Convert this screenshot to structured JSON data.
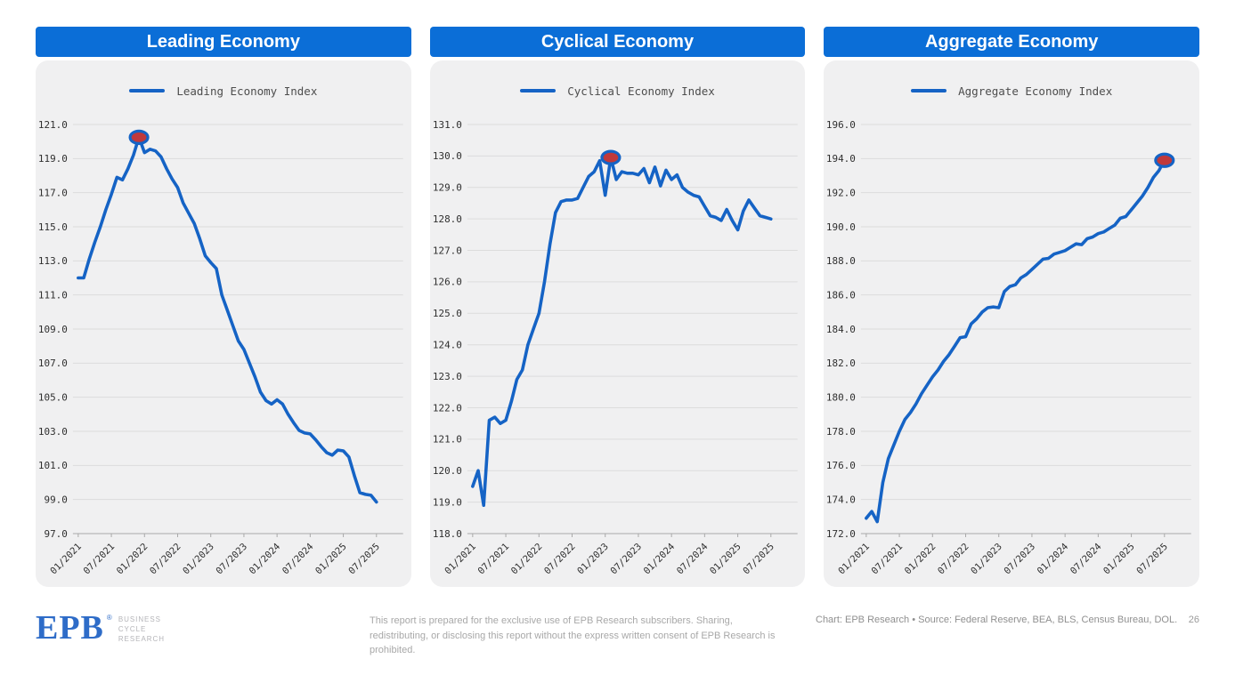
{
  "style": {
    "header_bg": "#0b6ed7",
    "card_bg": "#f0f0f1",
    "line_color": "#1563c5",
    "marker_fill": "#c0393b",
    "marker_stroke": "#1563c5",
    "grid_color": "#dcdcdc",
    "axis_color": "#a9a9a9",
    "tick_label_color": "#2f2f2f",
    "logo_blue": "#2e6cc8"
  },
  "chart_data": [
    {
      "type": "line",
      "title": "Leading Economy",
      "legend": "Leading Economy Index",
      "x_start": "01/2021",
      "x_freq": "monthly",
      "x_tick_labels": [
        "01/2021",
        "07/2021",
        "01/2022",
        "07/2022",
        "01/2023",
        "07/2023",
        "01/2024",
        "07/2024",
        "01/2025",
        "07/2025"
      ],
      "x_tick_every": 6,
      "ylim": [
        97.0,
        121.0
      ],
      "ytick_step": 2.0,
      "grid": "horizontal",
      "legend_position": "top-center",
      "highlight_index": 11,
      "series": [
        {
          "name": "Leading Economy Index",
          "values": [
            112.0,
            112.0,
            113.1,
            114.1,
            115.0,
            116.0,
            116.9,
            117.9,
            117.75,
            118.4,
            119.2,
            120.25,
            119.35,
            119.55,
            119.45,
            119.1,
            118.4,
            117.8,
            117.3,
            116.4,
            115.8,
            115.2,
            114.3,
            113.3,
            112.9,
            112.55,
            111.0,
            110.1,
            109.2,
            108.3,
            107.8,
            107.0,
            106.2,
            105.3,
            104.8,
            104.6,
            104.85,
            104.6,
            104.0,
            103.5,
            103.05,
            102.9,
            102.85,
            102.5,
            102.1,
            101.75,
            101.6,
            101.9,
            101.85,
            101.5,
            100.4,
            99.4,
            99.3,
            99.25,
            98.85
          ]
        }
      ]
    },
    {
      "type": "line",
      "title": "Cyclical Economy",
      "legend": "Cyclical Economy Index",
      "x_start": "01/2021",
      "x_freq": "monthly",
      "x_tick_labels": [
        "01/2021",
        "07/2021",
        "01/2022",
        "07/2022",
        "01/2023",
        "07/2023",
        "01/2024",
        "07/2024",
        "01/2025",
        "07/2025"
      ],
      "x_tick_every": 6,
      "ylim": [
        118.0,
        131.0
      ],
      "ytick_step": 1.0,
      "grid": "horizontal",
      "legend_position": "top-center",
      "highlight_index": 25,
      "series": [
        {
          "name": "Cyclical Economy Index",
          "values": [
            119.5,
            120.0,
            118.9,
            121.6,
            121.7,
            121.5,
            121.6,
            122.2,
            122.9,
            123.2,
            124.0,
            124.5,
            125.0,
            126.0,
            127.2,
            128.2,
            128.55,
            128.6,
            128.6,
            128.65,
            129.0,
            129.35,
            129.5,
            129.85,
            128.75,
            129.95,
            129.25,
            129.5,
            129.45,
            129.45,
            129.4,
            129.6,
            129.15,
            129.65,
            129.05,
            129.55,
            129.25,
            129.4,
            129.0,
            128.85,
            128.75,
            128.7,
            128.4,
            128.1,
            128.05,
            127.95,
            128.3,
            127.95,
            127.65,
            128.25,
            128.6,
            128.35,
            128.1,
            128.05,
            128.0
          ]
        }
      ]
    },
    {
      "type": "line",
      "title": "Aggregate Economy",
      "legend": "Aggregate Economy Index",
      "x_start": "01/2021",
      "x_freq": "monthly",
      "x_tick_labels": [
        "01/2021",
        "07/2021",
        "01/2022",
        "07/2022",
        "01/2023",
        "07/2023",
        "01/2024",
        "07/2024",
        "01/2025",
        "07/2025"
      ],
      "x_tick_every": 6,
      "ylim": [
        172.0,
        196.0
      ],
      "ytick_step": 2.0,
      "grid": "horizontal",
      "legend_position": "top-center",
      "highlight_index": 54,
      "series": [
        {
          "name": "Aggregate Economy Index",
          "values": [
            172.9,
            173.3,
            172.7,
            175.0,
            176.4,
            177.2,
            178.0,
            178.7,
            179.1,
            179.6,
            180.2,
            180.7,
            181.2,
            181.6,
            182.1,
            182.5,
            183.0,
            183.5,
            183.55,
            184.3,
            184.6,
            185.0,
            185.25,
            185.3,
            185.25,
            186.2,
            186.5,
            186.6,
            187.0,
            187.2,
            187.5,
            187.8,
            188.1,
            188.15,
            188.4,
            188.5,
            188.6,
            188.8,
            189.0,
            188.95,
            189.3,
            189.4,
            189.6,
            189.7,
            189.9,
            190.1,
            190.5,
            190.6,
            191.0,
            191.4,
            191.8,
            192.3,
            192.9,
            193.3,
            193.9
          ]
        }
      ]
    }
  ],
  "footer": {
    "logo": {
      "text": "EPB",
      "registered": "®",
      "tagline_lines": [
        "BUSINESS",
        "CYCLE",
        "RESEARCH"
      ]
    },
    "disclaimer": "This report is prepared for the exclusive use of EPB Research subscribers. Sharing, redistributing, or disclosing this report without the express written consent of EPB Research is prohibited.",
    "attribution": "Chart: EPB Research  •  Source: Federal Reserve, BEA, BLS, Census Bureau, DOL.",
    "page_number": "26"
  }
}
